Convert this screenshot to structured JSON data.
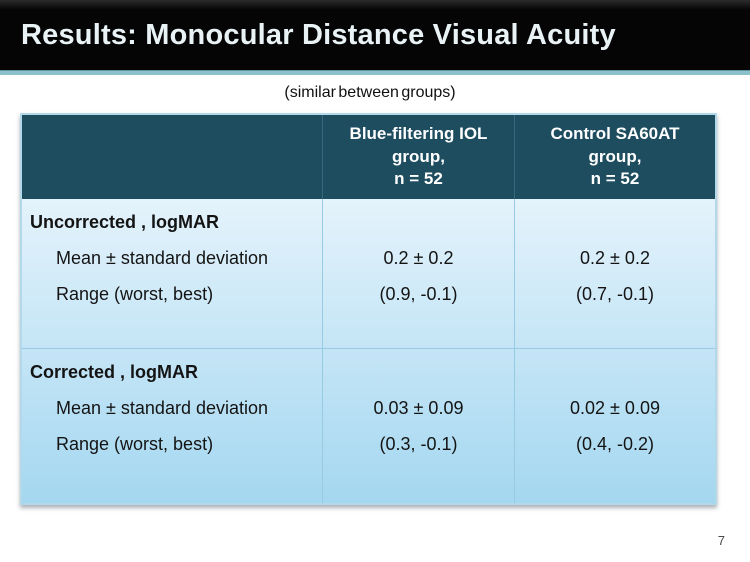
{
  "slide": {
    "title": "Results: Monocular Distance Visual Acuity",
    "subtitle": "(similar between groups)",
    "page_number": "7"
  },
  "table": {
    "header": {
      "col1": "",
      "col2": "Blue-filtering IOL\ngroup,\nn = 52",
      "col3": "Control SA60AT\ngroup,\nn = 52"
    },
    "sections": [
      {
        "title": "Uncorrected , logMAR",
        "rows": [
          {
            "label": "Mean ± standard deviation",
            "blue": "0.2 ± 0.2",
            "control": "0.2 ± 0.2"
          },
          {
            "label": "Range (worst, best)",
            "blue": "(0.9, -0.1)",
            "control": "(0.7, -0.1)"
          }
        ]
      },
      {
        "title": "Corrected , logMAR",
        "rows": [
          {
            "label": "Mean ± standard deviation",
            "blue": "0.03 ± 0.09",
            "control": "0.02 ± 0.09"
          },
          {
            "label": "Range (worst, best)",
            "blue": "(0.3, -0.1)",
            "control": "(0.4, -0.2)"
          }
        ]
      }
    ]
  },
  "colors": {
    "title_bar_bg": "#050505",
    "title_text": "#e9f3f6",
    "accent_rule": "#8cc0cb",
    "table_header_bg": "#1e4d5f",
    "table_header_text": "#ffffff",
    "table_body_top": "#e7f4fc",
    "table_body_bottom": "#a4d7f0",
    "table_border": "#b3d8ea",
    "grid_line": "#97cbe4",
    "body_text": "#141414",
    "page_number_text": "#4a4a4a"
  }
}
